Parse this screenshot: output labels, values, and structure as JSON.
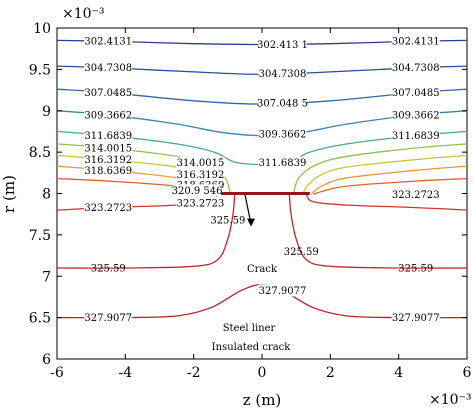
{
  "chart_data": {
    "type": "contour",
    "xlabel": "z (m)",
    "ylabel": "r (m)",
    "x_exponent": "×10⁻³",
    "y_exponent": "×10⁻³",
    "xlim": [
      -6,
      6
    ],
    "ylim": [
      6,
      10
    ],
    "xticks": [
      "-6",
      "-4",
      "-2",
      "0",
      "2",
      "4",
      "6"
    ],
    "yticks": [
      "6",
      "6.5",
      "7",
      "7.5",
      "8",
      "8.5",
      "9",
      "9.5",
      "10"
    ],
    "grid": false,
    "levels": [
      {
        "value": 302.4131,
        "labels": [
          "302.4131",
          "302.413 1",
          "302.4131"
        ],
        "color": "#2d3f8c",
        "points": [
          [
            -6,
            9.85
          ],
          [
            -4.5,
            9.84
          ],
          [
            -2,
            9.81
          ],
          [
            0,
            9.8
          ],
          [
            2,
            9.81
          ],
          [
            4.5,
            9.84
          ],
          [
            6,
            9.85
          ]
        ]
      },
      {
        "value": 304.7308,
        "labels": [
          "304.7308",
          "304.7308",
          "304.7308"
        ],
        "color": "#2c4d9b",
        "points": [
          [
            -6,
            9.54
          ],
          [
            -4.5,
            9.52
          ],
          [
            -2,
            9.47
          ],
          [
            0,
            9.44
          ],
          [
            2,
            9.47
          ],
          [
            4.5,
            9.52
          ],
          [
            6,
            9.54
          ]
        ]
      },
      {
        "value": 307.0485,
        "labels": [
          "307.0485",
          "307.048 5",
          "307.0485"
        ],
        "color": "#2e6aa8",
        "points": [
          [
            -6,
            9.26
          ],
          [
            -4.5,
            9.22
          ],
          [
            -2,
            9.12
          ],
          [
            0,
            9.08
          ],
          [
            2,
            9.12
          ],
          [
            4.5,
            9.22
          ],
          [
            6,
            9.26
          ]
        ]
      },
      {
        "value": 309.3662,
        "labels": [
          "309.3662",
          "309.3662",
          "309.3662"
        ],
        "color": "#3a86a8",
        "points": [
          [
            -6,
            9.0
          ],
          [
            -4.5,
            8.95
          ],
          [
            -2.5,
            8.84
          ],
          [
            -1.2,
            8.74
          ],
          [
            0,
            8.7
          ],
          [
            1.2,
            8.74
          ],
          [
            2.5,
            8.84
          ],
          [
            4.5,
            8.95
          ],
          [
            6,
            9.0
          ]
        ]
      },
      {
        "value": 311.6839,
        "labels": [
          "311.6839",
          "311.6839",
          "311.6839"
        ],
        "color": "#4ba88e",
        "points": [
          [
            -6,
            8.75
          ],
          [
            -4.5,
            8.7
          ],
          [
            -2.5,
            8.6
          ],
          [
            -1.4,
            8.5
          ],
          [
            -0.8,
            8.38
          ],
          [
            0,
            8.35
          ],
          [
            0.8,
            8.38
          ],
          [
            1.4,
            8.5
          ],
          [
            2.5,
            8.6
          ],
          [
            4.5,
            8.7
          ],
          [
            6,
            8.75
          ]
        ]
      },
      {
        "value": 314.0015,
        "labels": [
          "314.0015",
          "314.0015",
          "314.0015"
        ],
        "color": "#8fc14e",
        "points": [
          [
            -6,
            8.6
          ],
          [
            -4.5,
            8.55
          ],
          [
            -2.5,
            8.45
          ],
          [
            -1.6,
            8.35
          ],
          [
            -1.1,
            8.2
          ],
          [
            -0.95,
            8.05
          ],
          [
            -0.95,
            7.99
          ]
        ]
      },
      {
        "value": 314.0015,
        "labels": [],
        "color": "#8fc14e",
        "points": [
          [
            0.95,
            7.99
          ],
          [
            0.95,
            8.05
          ],
          [
            1.1,
            8.2
          ],
          [
            1.6,
            8.35
          ],
          [
            2.5,
            8.45
          ],
          [
            4.5,
            8.55
          ],
          [
            6,
            8.6
          ]
        ]
      },
      {
        "value": 316.3192,
        "labels": [
          "316.3192",
          "316.3192",
          "316.3192"
        ],
        "color": "#c9c43a",
        "points": [
          [
            -6,
            8.46
          ],
          [
            -4.5,
            8.41
          ],
          [
            -2.5,
            8.32
          ],
          [
            -1.7,
            8.22
          ],
          [
            -1.3,
            8.08
          ],
          [
            -1.2,
            7.99
          ]
        ]
      },
      {
        "value": 316.3192,
        "labels": [],
        "color": "#c9c43a",
        "points": [
          [
            1.2,
            7.99
          ],
          [
            1.3,
            8.08
          ],
          [
            1.7,
            8.22
          ],
          [
            2.5,
            8.32
          ],
          [
            4.5,
            8.41
          ],
          [
            6,
            8.46
          ]
        ]
      },
      {
        "value": 318.6369,
        "labels": [
          "318.6369",
          "318.6369",
          "318.6369"
        ],
        "color": "#e49a3a",
        "points": [
          [
            -6,
            8.33
          ],
          [
            -4.5,
            8.28
          ],
          [
            -2.5,
            8.19
          ],
          [
            -1.8,
            8.1
          ],
          [
            -1.45,
            8.0
          ]
        ]
      },
      {
        "value": 318.6369,
        "labels": [],
        "color": "#e49a3a",
        "points": [
          [
            1.45,
            8.0
          ],
          [
            1.8,
            8.1
          ],
          [
            2.5,
            8.19
          ],
          [
            4.5,
            8.28
          ],
          [
            6,
            8.33
          ]
        ]
      },
      {
        "value": 320.9546,
        "labels": [
          "320.9 546",
          "320.9546"
        ],
        "color": "#e3612f",
        "points": [
          [
            -6,
            8.18
          ],
          [
            -4.5,
            8.15
          ],
          [
            -2.5,
            8.09
          ],
          [
            -1.8,
            8.03
          ],
          [
            -1.5,
            7.99
          ]
        ]
      },
      {
        "value": 320.9546,
        "labels": [],
        "color": "#e3612f",
        "points": [
          [
            1.5,
            7.99
          ],
          [
            1.8,
            8.03
          ],
          [
            2.5,
            8.09
          ],
          [
            4.5,
            8.15
          ],
          [
            6,
            8.18
          ]
        ]
      },
      {
        "value": 323.2723,
        "labels": [
          "323.2723",
          "323.2723",
          "323.2723"
        ],
        "color": "#d63328",
        "points": [
          [
            -6,
            7.8
          ],
          [
            -4.5,
            7.83
          ],
          [
            -2.5,
            7.86
          ],
          [
            -1.5,
            7.9
          ],
          [
            -1.3,
            7.99
          ]
        ]
      },
      {
        "value": 323.2723,
        "labels": [],
        "color": "#d63328",
        "points": [
          [
            1.3,
            7.99
          ],
          [
            1.5,
            7.9
          ],
          [
            2.5,
            7.86
          ],
          [
            4.5,
            7.83
          ],
          [
            6,
            7.8
          ]
        ]
      },
      {
        "value": 325.59,
        "labels": [
          "325.59",
          "325.59",
          "325.59",
          "325.59"
        ],
        "color": "#c4292a",
        "points": [
          [
            -6,
            7.1
          ],
          [
            -4,
            7.1
          ],
          [
            -2,
            7.12
          ],
          [
            -1.3,
            7.2
          ],
          [
            -1.0,
            7.45
          ],
          [
            -0.85,
            7.75
          ],
          [
            -0.8,
            7.99
          ]
        ]
      },
      {
        "value": 325.59,
        "labels": [],
        "color": "#c4292a",
        "points": [
          [
            0.8,
            7.99
          ],
          [
            0.85,
            7.75
          ],
          [
            1.0,
            7.45
          ],
          [
            1.3,
            7.2
          ],
          [
            2,
            7.12
          ],
          [
            4,
            7.1
          ],
          [
            6,
            7.1
          ]
        ]
      },
      {
        "value": 327.9077,
        "labels": [
          "327.9077",
          "327.9077",
          "327.9077"
        ],
        "color": "#b7222a",
        "points": [
          [
            -6,
            6.5
          ],
          [
            -4,
            6.5
          ],
          [
            -2.5,
            6.52
          ],
          [
            -1.5,
            6.62
          ],
          [
            -0.6,
            6.83
          ],
          [
            0,
            6.9
          ],
          [
            0.6,
            6.83
          ],
          [
            1.5,
            6.62
          ],
          [
            2.5,
            6.52
          ],
          [
            4,
            6.5
          ],
          [
            6,
            6.5
          ]
        ]
      }
    ],
    "crack": {
      "z": [
        -1.4,
        1.4
      ],
      "r": 8.0,
      "color": "#8b1a1a"
    },
    "annotations": [
      "Crack",
      "Steel liner",
      "Insulated crack"
    ]
  }
}
